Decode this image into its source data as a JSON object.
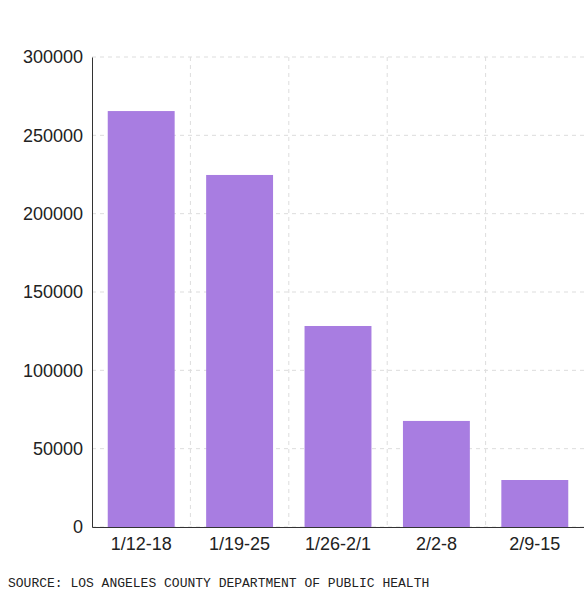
{
  "chart_data": {
    "type": "bar",
    "categories": [
      "1/12-18",
      "1/19-25",
      "1/26-2/1",
      "2/2-8",
      "2/9-15"
    ],
    "values": [
      265500,
      224700,
      128300,
      67700,
      30000
    ],
    "color": "#a87de1",
    "ylim": [
      0,
      300000
    ],
    "yticks": [
      0,
      50000,
      100000,
      150000,
      200000,
      250000,
      300000
    ],
    "grid": true,
    "source": "SOURCE: LOS ANGELES COUNTY DEPARTMENT OF PUBLIC HEALTH"
  }
}
